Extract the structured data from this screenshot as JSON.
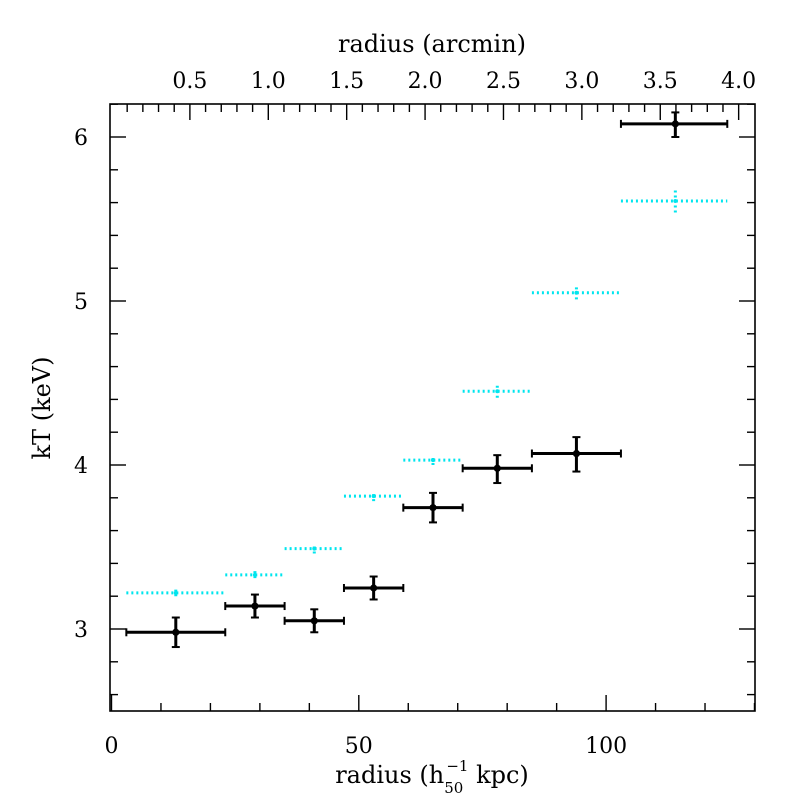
{
  "chart_data": {
    "type": "scatter",
    "xlabel": "radius (h",
    "xlabel_sub": "50",
    "xlabel_sup": "−1",
    "xlabel_tail": " kpc)",
    "ylabel": "kT (keV)",
    "top_xlabel": "radius (arcmin)",
    "xlim": [
      0,
      130
    ],
    "ylim": [
      2.5,
      6.2
    ],
    "x_ticks": [
      "0",
      "50",
      "100"
    ],
    "x_tick_values": [
      0,
      50,
      100
    ],
    "y_ticks": [
      "3",
      "4",
      "5",
      "6"
    ],
    "y_tick_values": [
      3,
      4,
      5,
      6
    ],
    "top_ticks": [
      "0.5",
      "1.0",
      "1.5",
      "2.0",
      "2.5",
      "3.0",
      "3.5",
      "4.0"
    ],
    "top_tick_values": [
      0.5,
      1.0,
      1.5,
      2.0,
      2.5,
      3.0,
      3.5,
      4.0
    ],
    "kpc_per_arcmin": 31.7,
    "grid": false,
    "series": [
      {
        "color": "#000000",
        "style": "solid",
        "points": [
          {
            "x": 13,
            "xlo": 3,
            "xhi": 23,
            "y": 2.98,
            "ylo": 2.89,
            "yhi": 3.07
          },
          {
            "x": 29,
            "xlo": 23,
            "xhi": 35,
            "y": 3.14,
            "ylo": 3.07,
            "yhi": 3.21
          },
          {
            "x": 41,
            "xlo": 35,
            "xhi": 47,
            "y": 3.05,
            "ylo": 2.98,
            "yhi": 3.12
          },
          {
            "x": 53,
            "xlo": 47,
            "xhi": 59,
            "y": 3.25,
            "ylo": 3.18,
            "yhi": 3.32
          },
          {
            "x": 65,
            "xlo": 59,
            "xhi": 71,
            "y": 3.74,
            "ylo": 3.65,
            "yhi": 3.83
          },
          {
            "x": 78,
            "xlo": 71,
            "xhi": 85,
            "y": 3.98,
            "ylo": 3.89,
            "yhi": 4.06
          },
          {
            "x": 94,
            "xlo": 85,
            "xhi": 103,
            "y": 4.07,
            "ylo": 3.96,
            "yhi": 4.17
          },
          {
            "x": 114,
            "xlo": 103,
            "xhi": 124.5,
            "y": 6.08,
            "ylo": 6.0,
            "yhi": 6.15
          }
        ]
      },
      {
        "color": "#00e5ee",
        "style": "dotted",
        "points": [
          {
            "x": 13,
            "xlo": 3,
            "xhi": 23,
            "y": 3.22,
            "ylo": 3.2,
            "yhi": 3.24
          },
          {
            "x": 29,
            "xlo": 23,
            "xhi": 35,
            "y": 3.33,
            "ylo": 3.31,
            "yhi": 3.36
          },
          {
            "x": 41,
            "xlo": 35,
            "xhi": 47,
            "y": 3.49,
            "ylo": 3.46,
            "yhi": 3.52
          },
          {
            "x": 53,
            "xlo": 47,
            "xhi": 59,
            "y": 3.81,
            "ylo": 3.78,
            "yhi": 3.84
          },
          {
            "x": 65,
            "xlo": 59,
            "xhi": 71,
            "y": 4.03,
            "ylo": 4.0,
            "yhi": 4.06
          },
          {
            "x": 78,
            "xlo": 71,
            "xhi": 85,
            "y": 4.45,
            "ylo": 4.41,
            "yhi": 4.49
          },
          {
            "x": 94,
            "xlo": 85,
            "xhi": 103,
            "y": 5.05,
            "ylo": 5.01,
            "yhi": 5.09
          },
          {
            "x": 114,
            "xlo": 103,
            "xhi": 124.5,
            "y": 5.61,
            "ylo": 5.54,
            "yhi": 5.68
          }
        ]
      }
    ]
  }
}
